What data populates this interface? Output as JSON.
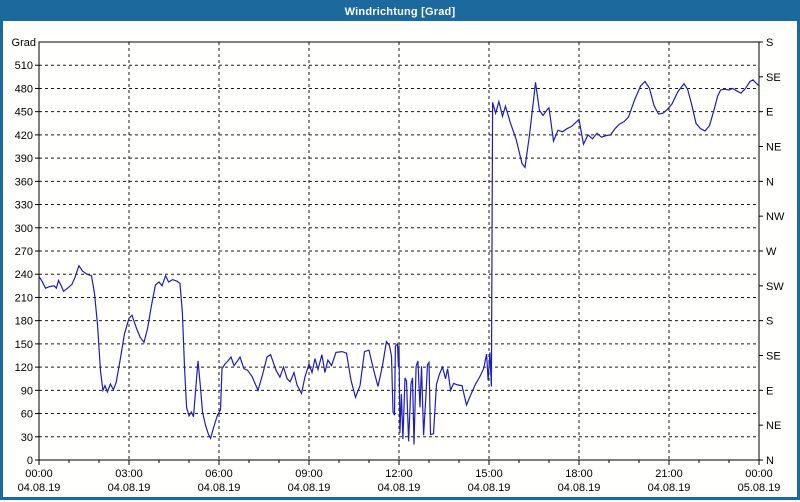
{
  "window": {
    "title": "Windrichtung [Grad]"
  },
  "colors": {
    "titlebar_bg": "#1c6a9d",
    "window_border": "#1c6a9d",
    "plot_bg": "#fffffe",
    "axis": "#000000",
    "grid": "#1a1a1a",
    "text": "#000000",
    "title_text": "#ffffff",
    "line": "#1e1eb4"
  },
  "chart_data": {
    "type": "line",
    "title": "Windrichtung [Grad]",
    "y_axis_title": "Grad",
    "ylim": [
      0,
      540
    ],
    "xlim_hours": [
      0,
      24
    ],
    "grid": "dashed; horizontal every 30 Grad, vertical every 3 h; minor x-ticks hourly",
    "legend": "none",
    "y_left_ticks": [
      510,
      480,
      450,
      420,
      390,
      360,
      330,
      300,
      270,
      240,
      210,
      180,
      150,
      120,
      90,
      60,
      30,
      0
    ],
    "y_right_ticks": [
      {
        "grad": 540,
        "label": "S"
      },
      {
        "grad": 495,
        "label": "SE"
      },
      {
        "grad": 450,
        "label": "E"
      },
      {
        "grad": 405,
        "label": "NE"
      },
      {
        "grad": 360,
        "label": "N"
      },
      {
        "grad": 315,
        "label": "NW"
      },
      {
        "grad": 270,
        "label": "W"
      },
      {
        "grad": 225,
        "label": "SW"
      },
      {
        "grad": 180,
        "label": "S"
      },
      {
        "grad": 135,
        "label": "SE"
      },
      {
        "grad": 90,
        "label": "E"
      },
      {
        "grad": 45,
        "label": "NE"
      },
      {
        "grad": 0,
        "label": "N"
      }
    ],
    "x_ticks": [
      {
        "hour": 0,
        "time": "00:00",
        "date": "04.08.19"
      },
      {
        "hour": 3,
        "time": "03:00",
        "date": "04.08.19"
      },
      {
        "hour": 6,
        "time": "06:00",
        "date": "04.08.19"
      },
      {
        "hour": 9,
        "time": "09:00",
        "date": "04.08.19"
      },
      {
        "hour": 12,
        "time": "12:00",
        "date": "04.08.19"
      },
      {
        "hour": 15,
        "time": "15:00",
        "date": "04.08.19"
      },
      {
        "hour": 18,
        "time": "18:00",
        "date": "04.08.19"
      },
      {
        "hour": 21,
        "time": "21:00",
        "date": "04.08.19"
      },
      {
        "hour": 24,
        "time": "00:00",
        "date": "05.08.19"
      }
    ],
    "series": [
      {
        "name": "Windrichtung",
        "color": "#1e1eb4",
        "points": [
          [
            0,
            237
          ],
          [
            0.1,
            231
          ],
          [
            0.22,
            222
          ],
          [
            0.35,
            224
          ],
          [
            0.5,
            225
          ],
          [
            0.58,
            222
          ],
          [
            0.65,
            232
          ],
          [
            0.73,
            226
          ],
          [
            0.82,
            218
          ],
          [
            0.95,
            222
          ],
          [
            1.1,
            227
          ],
          [
            1.2,
            236
          ],
          [
            1.33,
            251
          ],
          [
            1.45,
            244
          ],
          [
            1.6,
            240
          ],
          [
            1.75,
            238
          ],
          [
            1.85,
            215
          ],
          [
            1.95,
            175
          ],
          [
            2.05,
            115
          ],
          [
            2.13,
            90
          ],
          [
            2.2,
            96
          ],
          [
            2.28,
            88
          ],
          [
            2.38,
            98
          ],
          [
            2.48,
            91
          ],
          [
            2.57,
            100
          ],
          [
            2.7,
            128
          ],
          [
            2.85,
            163
          ],
          [
            3,
            183
          ],
          [
            3.1,
            187
          ],
          [
            3.25,
            170
          ],
          [
            3.38,
            158
          ],
          [
            3.5,
            152
          ],
          [
            3.62,
            170
          ],
          [
            3.75,
            200
          ],
          [
            3.88,
            226
          ],
          [
            4,
            230
          ],
          [
            4.1,
            225
          ],
          [
            4.22,
            238
          ],
          [
            4.32,
            230
          ],
          [
            4.45,
            233
          ],
          [
            4.6,
            231
          ],
          [
            4.7,
            228
          ],
          [
            4.78,
            190
          ],
          [
            4.85,
            120
          ],
          [
            4.92,
            68
          ],
          [
            5,
            57
          ],
          [
            5.08,
            62
          ],
          [
            5.15,
            56
          ],
          [
            5.22,
            90
          ],
          [
            5.3,
            128
          ],
          [
            5.38,
            95
          ],
          [
            5.45,
            62
          ],
          [
            5.55,
            45
          ],
          [
            5.65,
            33
          ],
          [
            5.72,
            28
          ],
          [
            5.82,
            42
          ],
          [
            5.95,
            58
          ],
          [
            6.05,
            65
          ],
          [
            6.1,
            118
          ],
          [
            6.2,
            124
          ],
          [
            6.3,
            128
          ],
          [
            6.4,
            133
          ],
          [
            6.5,
            122
          ],
          [
            6.6,
            127
          ],
          [
            6.7,
            133
          ],
          [
            6.83,
            118
          ],
          [
            6.95,
            116
          ],
          [
            7.1,
            108
          ],
          [
            7.3,
            90
          ],
          [
            7.45,
            110
          ],
          [
            7.6,
            133
          ],
          [
            7.72,
            136
          ],
          [
            7.9,
            116
          ],
          [
            8.03,
            107
          ],
          [
            8.15,
            120
          ],
          [
            8.27,
            105
          ],
          [
            8.37,
            101
          ],
          [
            8.5,
            113
          ],
          [
            8.6,
            97
          ],
          [
            8.75,
            86
          ],
          [
            8.87,
            108
          ],
          [
            9,
            124
          ],
          [
            9.1,
            113
          ],
          [
            9.2,
            131
          ],
          [
            9.3,
            117
          ],
          [
            9.43,
            136
          ],
          [
            9.53,
            113
          ],
          [
            9.63,
            129
          ],
          [
            9.75,
            122
          ],
          [
            9.9,
            139
          ],
          [
            10.1,
            140
          ],
          [
            10.25,
            138
          ],
          [
            10.4,
            103
          ],
          [
            10.55,
            81
          ],
          [
            10.7,
            96
          ],
          [
            10.85,
            140
          ],
          [
            11,
            142
          ],
          [
            11.15,
            117
          ],
          [
            11.3,
            95
          ],
          [
            11.45,
            122
          ],
          [
            11.58,
            153
          ],
          [
            11.68,
            148
          ],
          [
            11.75,
            134
          ],
          [
            11.8,
            62
          ],
          [
            11.85,
            58
          ],
          [
            11.88,
            147
          ],
          [
            11.95,
            150
          ],
          [
            11.98,
            120
          ],
          [
            12,
            148
          ],
          [
            12.03,
            35
          ],
          [
            12.08,
            85
          ],
          [
            12.13,
            27
          ],
          [
            12.2,
            106
          ],
          [
            12.25,
            102
          ],
          [
            12.32,
            24
          ],
          [
            12.4,
            98
          ],
          [
            12.45,
            106
          ],
          [
            12.5,
            20
          ],
          [
            12.57,
            121
          ],
          [
            12.63,
            128
          ],
          [
            12.7,
            68
          ],
          [
            12.75,
            121
          ],
          [
            12.82,
            32
          ],
          [
            12.9,
            85
          ],
          [
            12.95,
            123
          ],
          [
            13,
            126
          ],
          [
            13.05,
            33
          ],
          [
            13.15,
            34
          ],
          [
            13.25,
            98
          ],
          [
            13.35,
            111
          ],
          [
            13.45,
            120
          ],
          [
            13.55,
            105
          ],
          [
            13.62,
            118
          ],
          [
            13.72,
            90
          ],
          [
            13.82,
            99
          ],
          [
            13.95,
            97
          ],
          [
            14.1,
            96
          ],
          [
            14.25,
            71
          ],
          [
            14.4,
            85
          ],
          [
            14.55,
            98
          ],
          [
            14.7,
            108
          ],
          [
            14.82,
            118
          ],
          [
            14.92,
            137
          ],
          [
            14.97,
            103
          ],
          [
            15.03,
            139
          ],
          [
            15.08,
            95
          ],
          [
            15.12,
            462
          ],
          [
            15.22,
            448
          ],
          [
            15.33,
            463
          ],
          [
            15.45,
            444
          ],
          [
            15.55,
            457
          ],
          [
            15.7,
            437
          ],
          [
            15.9,
            415
          ],
          [
            16.1,
            383
          ],
          [
            16.2,
            378
          ],
          [
            16.35,
            420
          ],
          [
            16.5,
            470
          ],
          [
            16.55,
            488
          ],
          [
            16.68,
            452
          ],
          [
            16.8,
            445
          ],
          [
            16.95,
            453
          ],
          [
            17,
            455
          ],
          [
            17.15,
            412
          ],
          [
            17.3,
            426
          ],
          [
            17.45,
            424
          ],
          [
            17.6,
            428
          ],
          [
            17.75,
            431
          ],
          [
            18,
            440
          ],
          [
            18.15,
            408
          ],
          [
            18.3,
            420
          ],
          [
            18.45,
            415
          ],
          [
            18.6,
            422
          ],
          [
            18.75,
            417
          ],
          [
            18.9,
            419
          ],
          [
            19.05,
            420
          ],
          [
            19.2,
            428
          ],
          [
            19.35,
            434
          ],
          [
            19.5,
            437
          ],
          [
            19.65,
            443
          ],
          [
            19.85,
            465
          ],
          [
            20.05,
            483
          ],
          [
            20.2,
            489
          ],
          [
            20.35,
            480
          ],
          [
            20.5,
            458
          ],
          [
            20.65,
            447
          ],
          [
            20.8,
            448
          ],
          [
            20.95,
            453
          ],
          [
            21.1,
            460
          ],
          [
            21.3,
            476
          ],
          [
            21.5,
            486
          ],
          [
            21.62,
            479
          ],
          [
            21.75,
            460
          ],
          [
            21.9,
            435
          ],
          [
            22.05,
            428
          ],
          [
            22.2,
            425
          ],
          [
            22.35,
            432
          ],
          [
            22.5,
            452
          ],
          [
            22.62,
            470
          ],
          [
            22.72,
            478
          ],
          [
            22.85,
            479
          ],
          [
            23,
            478
          ],
          [
            23.12,
            480
          ],
          [
            23.25,
            477
          ],
          [
            23.4,
            474
          ],
          [
            23.55,
            480
          ],
          [
            23.7,
            489
          ],
          [
            23.8,
            491
          ],
          [
            23.9,
            487
          ],
          [
            24,
            483
          ]
        ]
      }
    ]
  }
}
